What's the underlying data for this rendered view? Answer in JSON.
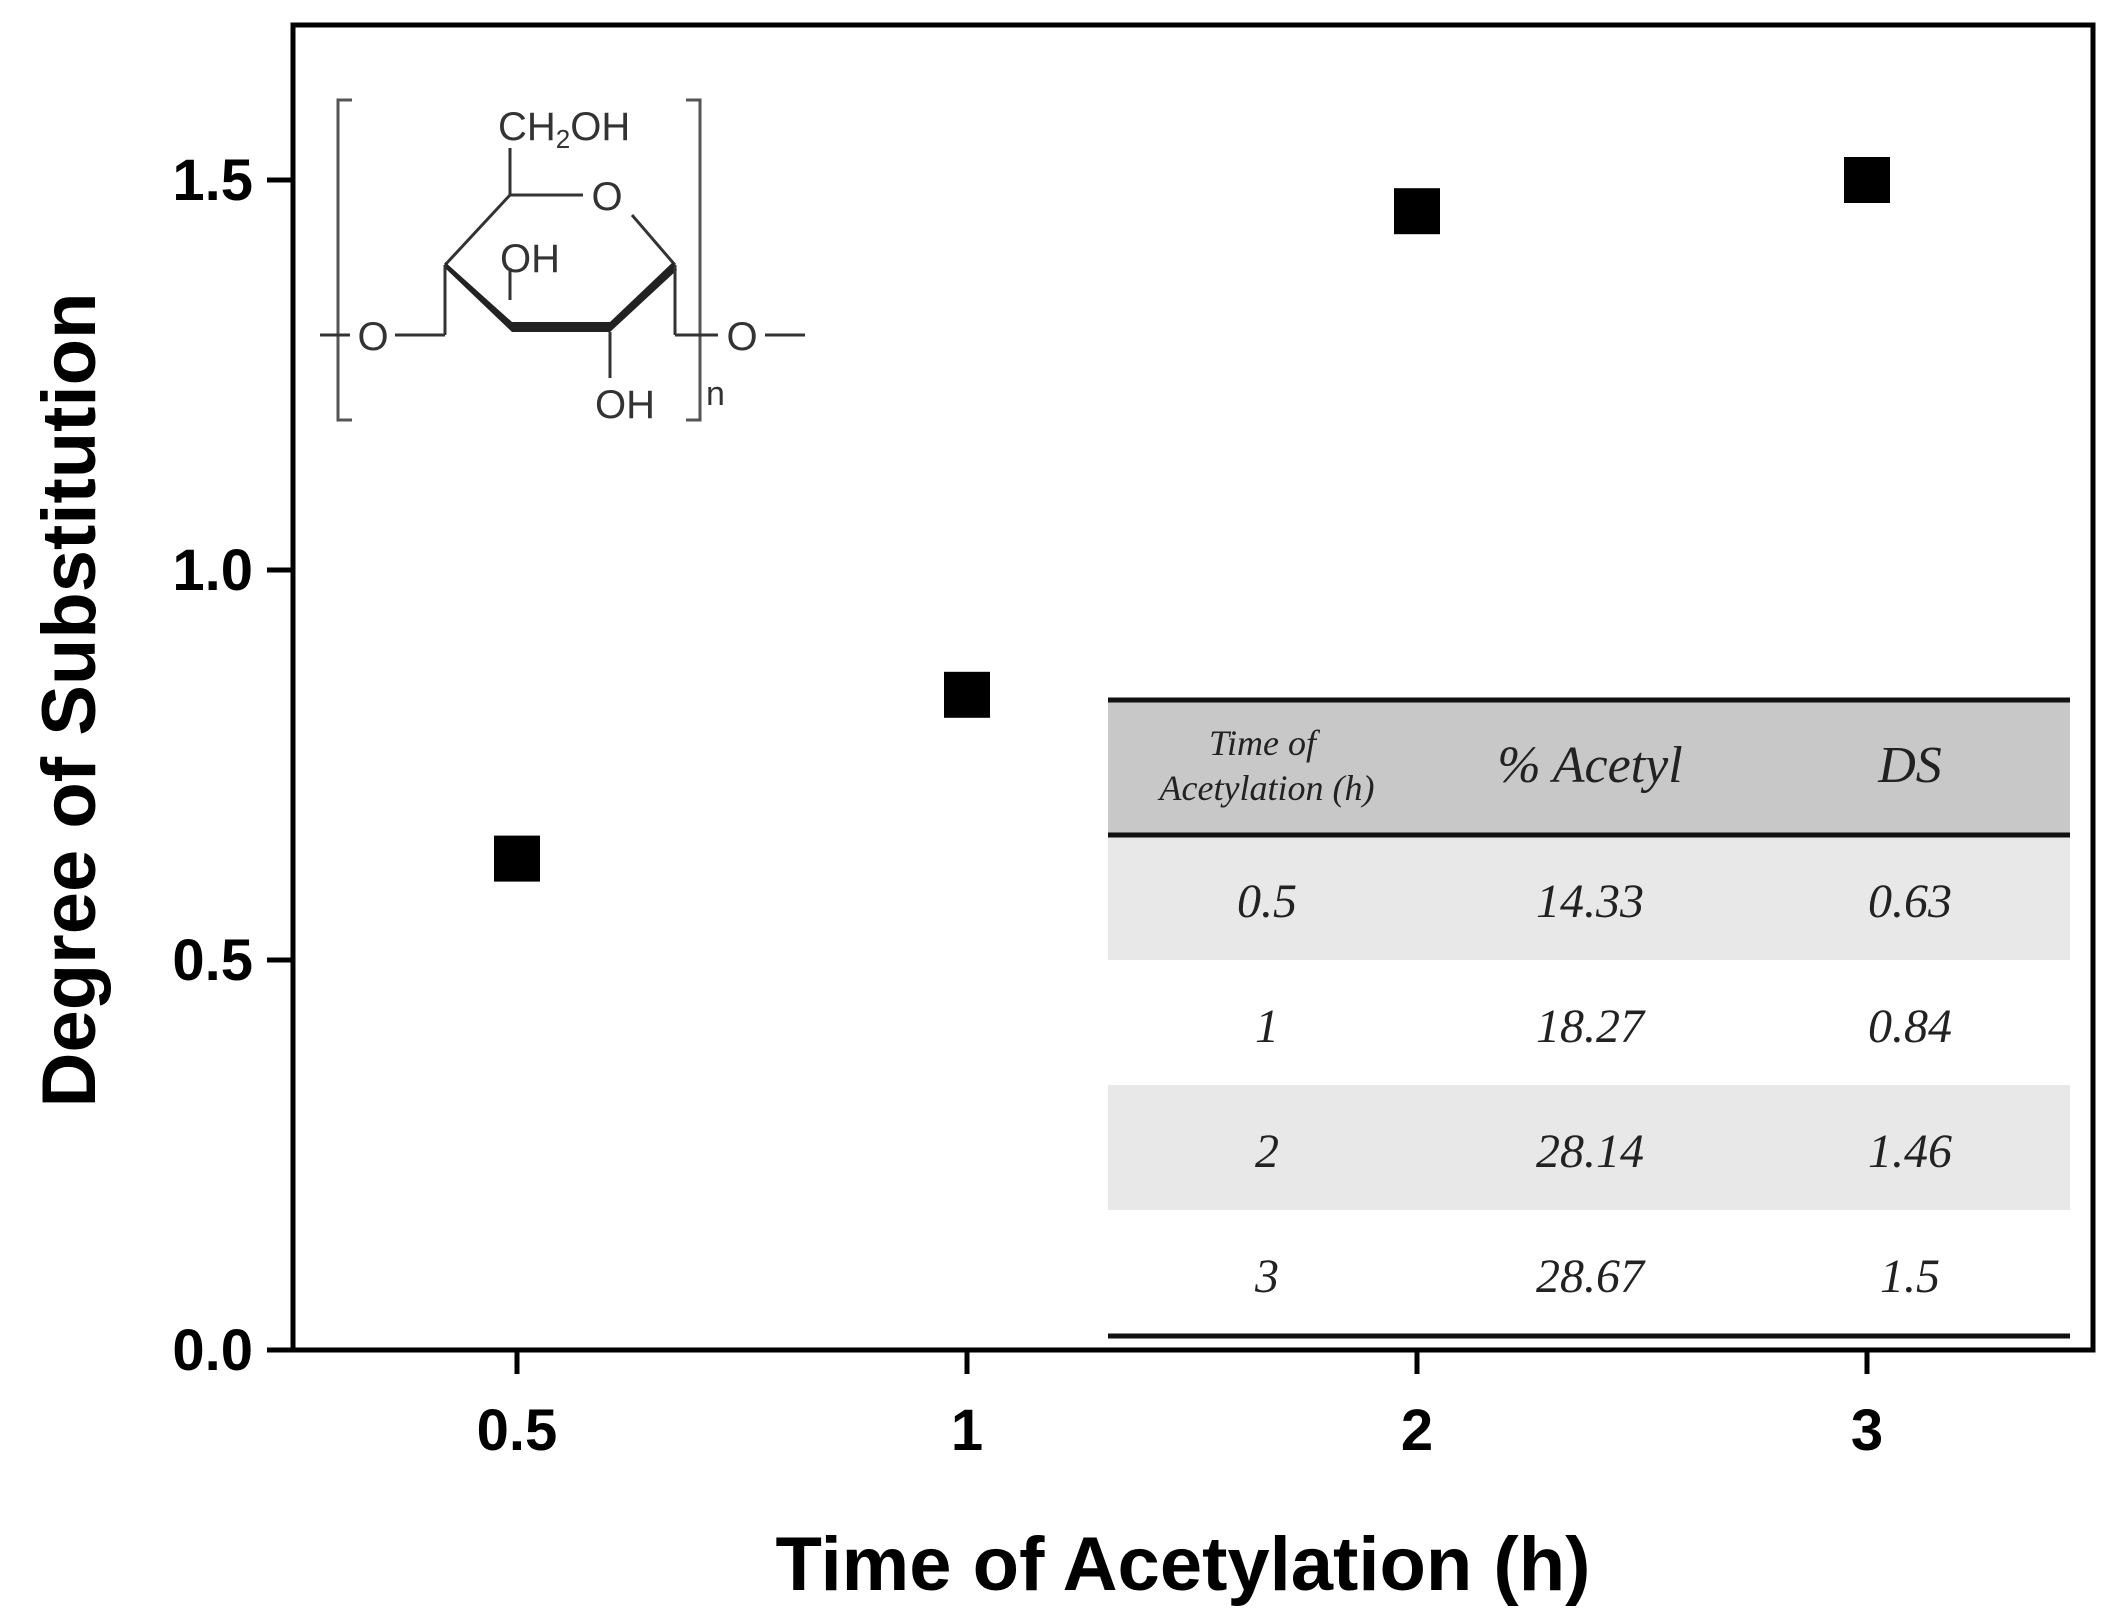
{
  "chart_data": {
    "type": "scatter",
    "title": "",
    "xlabel": "Time of Acetylation (h)",
    "ylabel": "Degree of Substitution",
    "categories": [
      "0.5",
      "1",
      "2",
      "3"
    ],
    "values": [
      0.63,
      0.84,
      1.46,
      1.5
    ],
    "ylim": [
      0,
      1.7
    ],
    "y_ticks": [
      "0.0",
      "0.5",
      "1.0",
      "1.5"
    ],
    "grid": false,
    "marker": "square",
    "marker_color": "#000000",
    "inset_table": {
      "headers": [
        "Time of Acetylation (h)",
        "% Acetyl",
        "DS"
      ],
      "header_lines": [
        [
          "Time of",
          "Acetylation (h)"
        ],
        [
          "% Acetyl"
        ],
        [
          "DS"
        ]
      ],
      "rows": [
        [
          "0.5",
          "14.33",
          "0.63"
        ],
        [
          "1",
          "18.27",
          "0.84"
        ],
        [
          "2",
          "28.14",
          "1.46"
        ],
        [
          "3",
          "28.67",
          "1.5"
        ]
      ],
      "header_fill": "#c8c8c8",
      "stripe_fill": "#e8e8e8"
    },
    "structure_labels": {
      "ch2oh_prefix": "CH",
      "ch2oh_sub": "2",
      "ch2oh_suffix": "OH",
      "ring_o": "O",
      "oh_upper": "OH",
      "oh_lower": "OH",
      "o_left": "O",
      "o_right": "O",
      "n": "n"
    }
  }
}
